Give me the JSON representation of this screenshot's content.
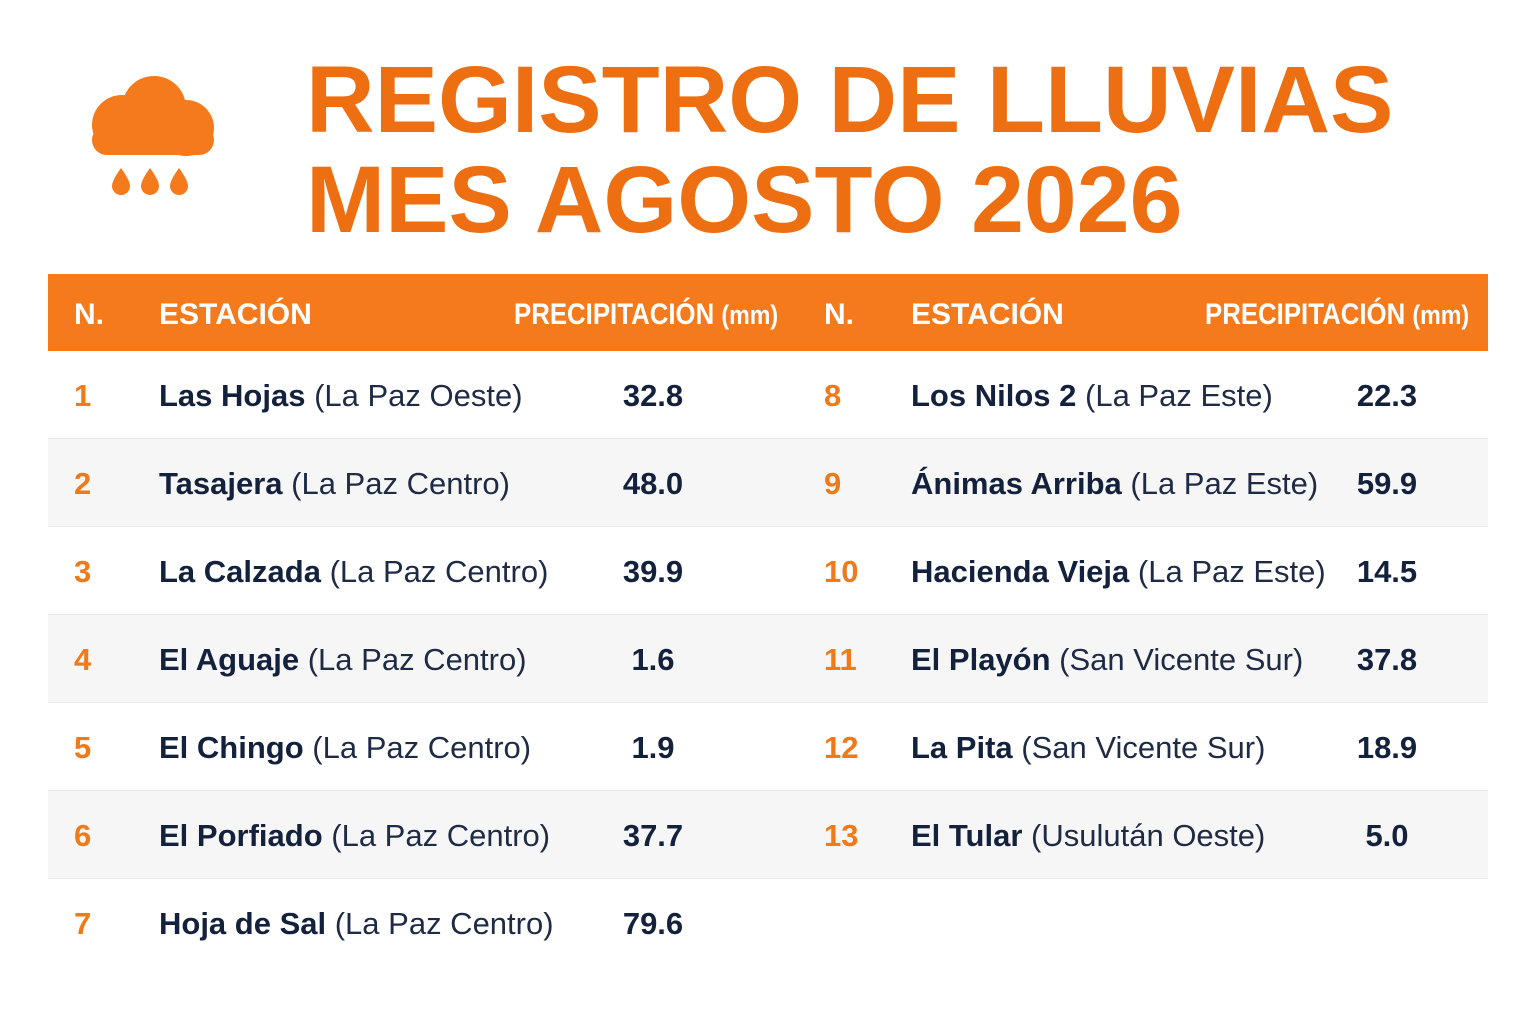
{
  "title": {
    "line1": "REGISTRO DE LLUVIAS",
    "line2": "MES AGOSTO 2026"
  },
  "icon": "rain-cloud-icon",
  "colors": {
    "accent": "#f47a1c",
    "title": "#ee6f12",
    "text": "#14213d"
  },
  "header": {
    "left": {
      "num": "N.",
      "station": "ESTACIÓN",
      "precip": "PRECIPITACIÓN",
      "unit": "(mm)"
    },
    "right": {
      "num": "N.",
      "station": "ESTACIÓN",
      "precip": "PRECIPITACIÓN",
      "unit": "(mm)"
    }
  },
  "left_rows": [
    {
      "num": "1",
      "name": "Las Hojas",
      "region": "(La Paz Oeste)",
      "value": "32.8"
    },
    {
      "num": "2",
      "name": "Tasajera",
      "region": "(La Paz Centro)",
      "value": "48.0"
    },
    {
      "num": "3",
      "name": "La Calzada",
      "region": "(La Paz Centro)",
      "value": "39.9"
    },
    {
      "num": "4",
      "name": "El Aguaje",
      "region": "(La Paz Centro)",
      "value": "1.6"
    },
    {
      "num": "5",
      "name": "El Chingo",
      "region": "(La Paz Centro)",
      "value": "1.9"
    },
    {
      "num": "6",
      "name": "El Porfiado",
      "region": "(La Paz Centro)",
      "value": "37.7"
    },
    {
      "num": "7",
      "name": "Hoja de Sal",
      "region": "(La Paz Centro)",
      "value": "79.6"
    }
  ],
  "right_rows": [
    {
      "num": "8",
      "name": "Los Nilos 2",
      "region": "(La Paz Este)",
      "value": "22.3"
    },
    {
      "num": "9",
      "name": "Ánimas Arriba",
      "region": "(La Paz Este)",
      "value": "59.9"
    },
    {
      "num": "10",
      "name": "Hacienda Vieja",
      "region": "(La Paz Este)",
      "value": "14.5"
    },
    {
      "num": "11",
      "name": "El Playón",
      "region": "(San Vicente Sur)",
      "value": "37.8"
    },
    {
      "num": "12",
      "name": "La Pita",
      "region": " (San Vicente Sur)",
      "value": "18.9"
    },
    {
      "num": "13",
      "name": "El Tular",
      "region": " (Usulután Oeste)",
      "value": "5.0"
    }
  ]
}
